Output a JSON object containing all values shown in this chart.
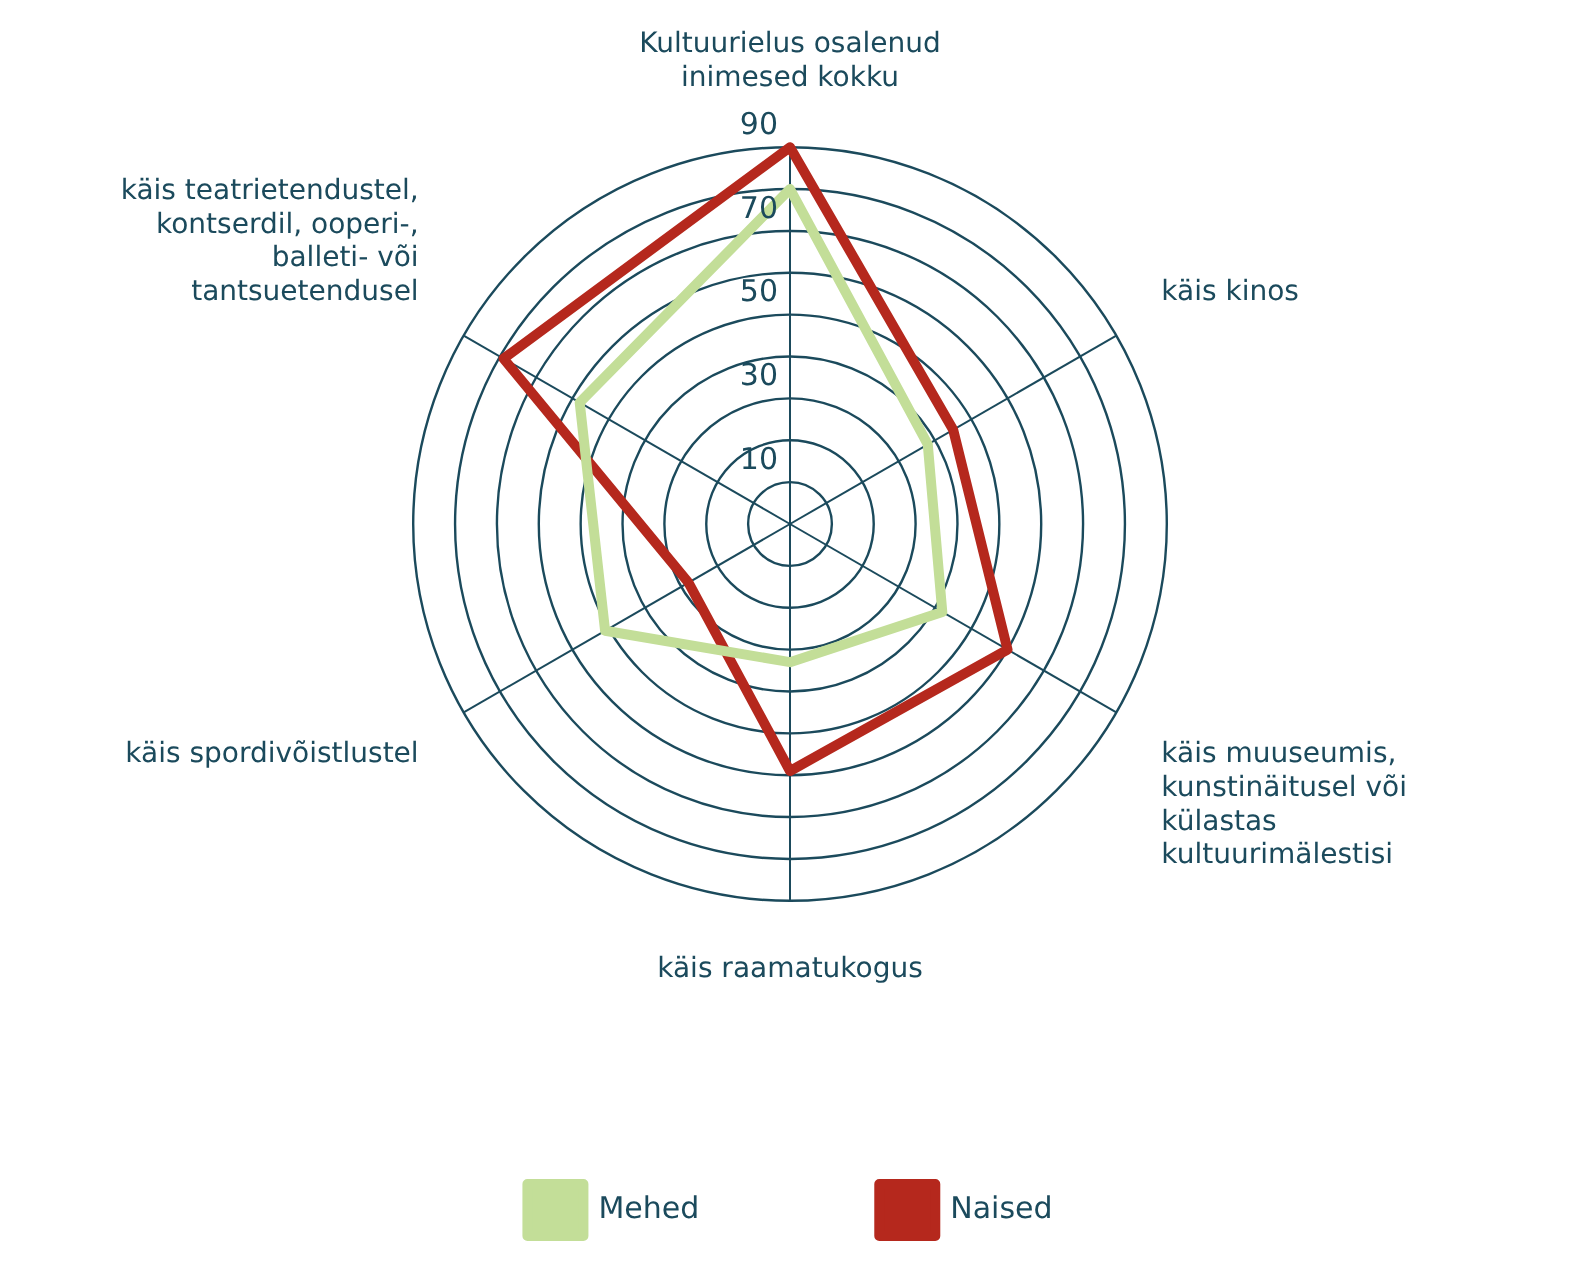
{
  "chart_data": {
    "type": "radar",
    "categories": [
      "Kultuurielus osalenud inimesed kokku",
      "käis kinos",
      "käis muuseumis, kunstinäitusel või külastas kultuurimälestisi",
      "käis raamatukogus",
      "käis spordivõistlustel",
      "käis teatrietendustel, kontserdil, ooperi-, balleti- või tantsuetendusel"
    ],
    "series": [
      {
        "name": "Mehed",
        "color": "#c3de98",
        "values": [
          80,
          38,
          42,
          33,
          51,
          58
        ]
      },
      {
        "name": "Naised",
        "color": "#b5281d",
        "values": [
          90,
          45,
          60,
          59,
          28,
          79
        ]
      }
    ],
    "ylim": [
      0,
      90
    ],
    "yticks": [
      10,
      30,
      50,
      70,
      90
    ],
    "grid": true,
    "legend": "bottom",
    "line_style": "solid",
    "marker": "none"
  }
}
